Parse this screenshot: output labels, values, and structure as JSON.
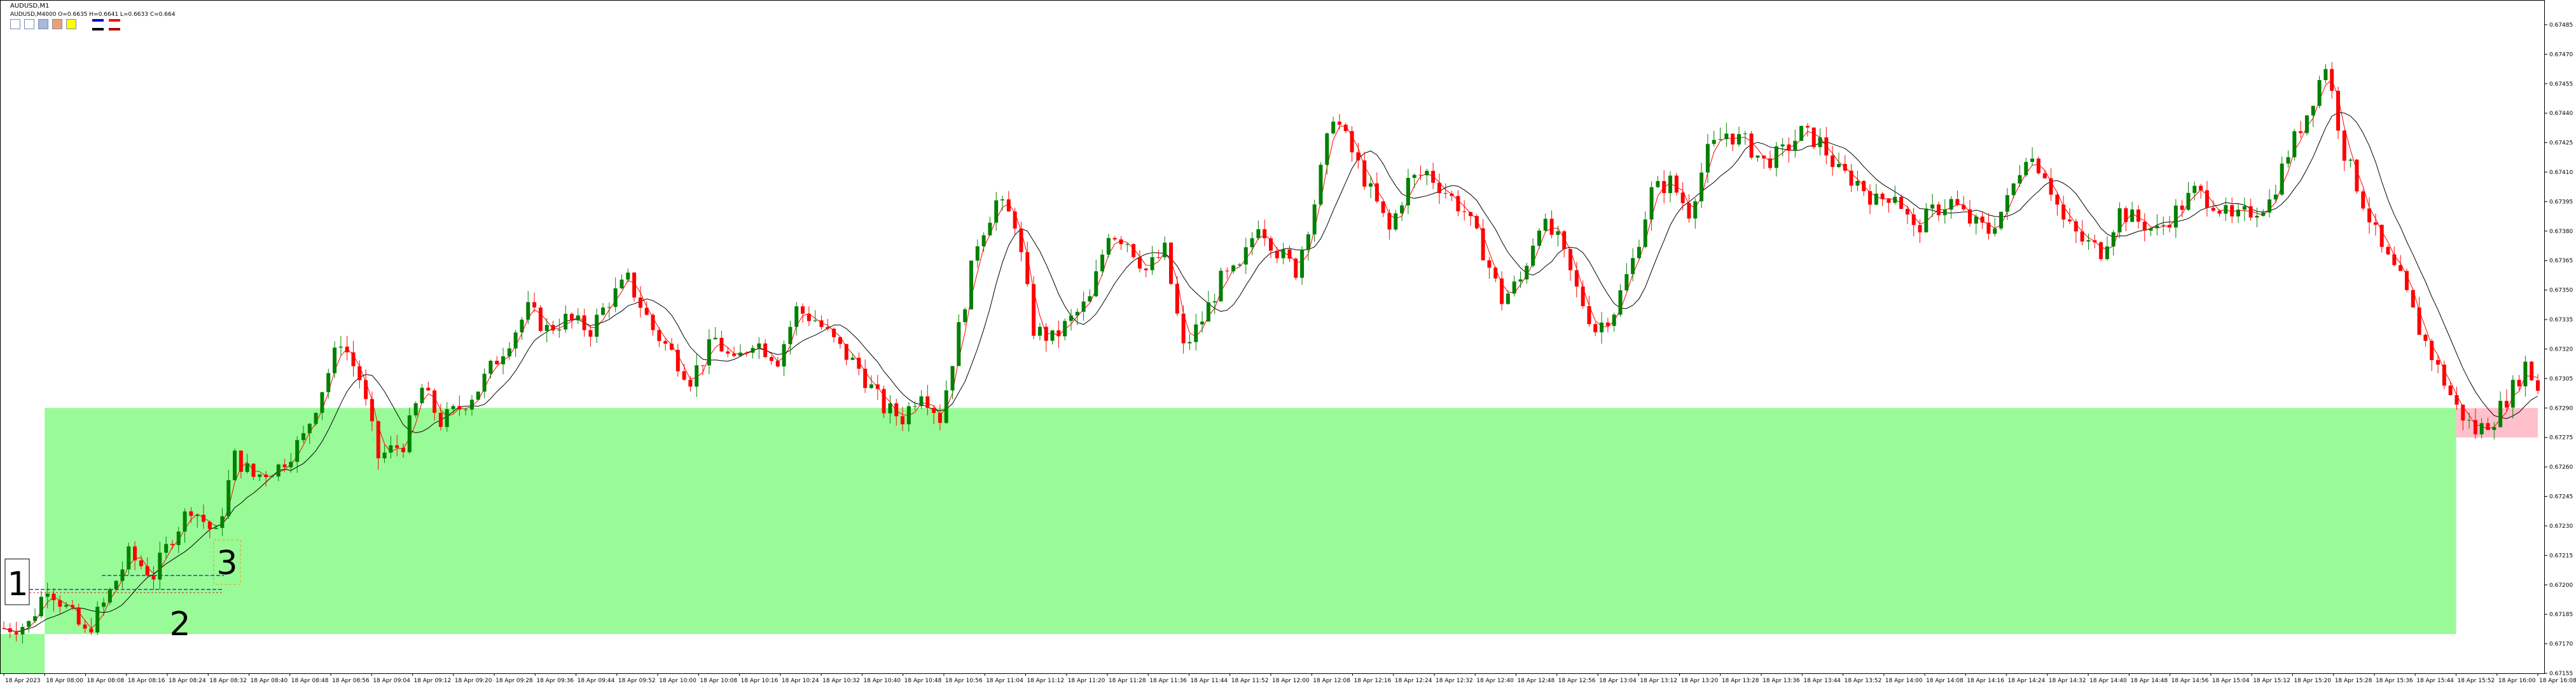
{
  "header": {
    "symbol_line": "AUDUSD,M1",
    "ohlc_line": "AUDUSD,M4000   O=0.6635   H=0.6641   L=0.6633   C=0.664",
    "legend_colors": [
      "#0000cc",
      "#ff0000",
      "#000000",
      "#b30000"
    ]
  },
  "toolbar": {
    "buttons": [
      {
        "name": "square-outline-blue-icon",
        "color": "#ffffff"
      },
      {
        "name": "square-outline-red-icon",
        "color": "#ffffff"
      },
      {
        "name": "square-fill-gray-icon",
        "color": "#a8b8d8"
      },
      {
        "name": "square-fill-orange-icon",
        "color": "#f0a070"
      },
      {
        "name": "square-fill-yellow-icon",
        "color": "#ffff00"
      }
    ]
  },
  "annotations": {
    "label_1": "1",
    "label_2": "2",
    "label_3": "3"
  },
  "colors": {
    "bull": "#008000",
    "bear": "#ff0000",
    "ma_fast": "#ff0000",
    "ma_slow": "#000000",
    "zone_green": "#98fb98",
    "zone_pink": "#ffc0cb",
    "axis": "#000000"
  },
  "chart_data": {
    "type": "candlestick",
    "title": "AUDUSD,M1",
    "ylim": [
      0.67155,
      0.67495
    ],
    "y_ticks": [
      "0.67485",
      "0.67470",
      "0.67455",
      "0.67440",
      "0.67425",
      "0.67410",
      "0.67395",
      "0.67380",
      "0.67365",
      "0.67350",
      "0.67335",
      "0.67320",
      "0.67305",
      "0.67290",
      "0.67275",
      "0.67260",
      "0.67245",
      "0.67230",
      "0.67215",
      "0.67200",
      "0.67185",
      "0.67170",
      "0.67155"
    ],
    "x_ticks": [
      "18 Apr 2023",
      "18 Apr 08:00",
      "18 Apr 08:08",
      "18 Apr 08:16",
      "18 Apr 08:24",
      "18 Apr 08:32",
      "18 Apr 08:40",
      "18 Apr 08:48",
      "18 Apr 08:56",
      "18 Apr 09:04",
      "18 Apr 09:12",
      "18 Apr 09:20",
      "18 Apr 09:28",
      "18 Apr 09:36",
      "18 Apr 09:44",
      "18 Apr 09:52",
      "18 Apr 10:00",
      "18 Apr 10:08",
      "18 Apr 10:16",
      "18 Apr 10:24",
      "18 Apr 10:32",
      "18 Apr 10:40",
      "18 Apr 10:48",
      "18 Apr 10:56",
      "18 Apr 11:04",
      "18 Apr 11:12",
      "18 Apr 11:20",
      "18 Apr 11:28",
      "18 Apr 11:36",
      "18 Apr 11:44",
      "18 Apr 11:52",
      "18 Apr 12:00",
      "18 Apr 12:08",
      "18 Apr 12:16",
      "18 Apr 12:24",
      "18 Apr 12:32",
      "18 Apr 12:40",
      "18 Apr 12:48",
      "18 Apr 12:56",
      "18 Apr 13:04",
      "18 Apr 13:12",
      "18 Apr 13:20",
      "18 Apr 13:28",
      "18 Apr 13:36",
      "18 Apr 13:44",
      "18 Apr 13:52",
      "18 Apr 14:00",
      "18 Apr 14:08",
      "18 Apr 14:16",
      "18 Apr 14:24",
      "18 Apr 14:32",
      "18 Apr 14:40",
      "18 Apr 14:48",
      "18 Apr 14:56",
      "18 Apr 15:04",
      "18 Apr 15:12",
      "18 Apr 15:20",
      "18 Apr 15:28",
      "18 Apr 15:36",
      "18 Apr 15:44",
      "18 Apr 15:52",
      "18 Apr 16:00",
      "18 Apr 16:08"
    ],
    "zones": [
      {
        "name": "demand-zone",
        "x_start": "18 Apr 08:00",
        "x_end": "18 Apr 15:52",
        "y_low": 0.67175,
        "y_high": 0.6729
      },
      {
        "name": "demand-zone-origin",
        "x_start": "18 Apr 2023",
        "x_end": "18 Apr 08:00",
        "y_low": 0.67155,
        "y_high": 0.67175
      },
      {
        "name": "pink-zone",
        "x_start": "18 Apr 15:52",
        "x_end": "18 Apr 16:08",
        "y_low": 0.67275,
        "y_high": 0.6729
      }
    ],
    "path_points": [
      [
        0,
        0.67178
      ],
      [
        4,
        0.6718
      ],
      [
        7,
        0.672
      ],
      [
        10,
        0.67188
      ],
      [
        13,
        0.67175
      ],
      [
        16,
        0.6719
      ],
      [
        20,
        0.67215
      ],
      [
        24,
        0.67205
      ],
      [
        27,
        0.67225
      ],
      [
        30,
        0.6724
      ],
      [
        34,
        0.67225
      ],
      [
        37,
        0.67265
      ],
      [
        40,
        0.67255
      ],
      [
        44,
        0.6726
      ],
      [
        48,
        0.67275
      ],
      [
        51,
        0.673
      ],
      [
        54,
        0.67325
      ],
      [
        57,
        0.67305
      ],
      [
        60,
        0.67265
      ],
      [
        64,
        0.67272
      ],
      [
        67,
        0.673
      ],
      [
        70,
        0.67283
      ],
      [
        73,
        0.6729
      ],
      [
        76,
        0.673
      ],
      [
        80,
        0.6732
      ],
      [
        84,
        0.6734
      ],
      [
        87,
        0.6733
      ],
      [
        90,
        0.67335
      ],
      [
        94,
        0.6733
      ],
      [
        97,
        0.67345
      ],
      [
        100,
        0.67355
      ],
      [
        104,
        0.6733
      ],
      [
        107,
        0.67318
      ],
      [
        110,
        0.67305
      ],
      [
        114,
        0.67325
      ],
      [
        117,
        0.67312
      ],
      [
        120,
        0.67325
      ],
      [
        124,
        0.67315
      ],
      [
        127,
        0.6734
      ],
      [
        130,
        0.67335
      ],
      [
        134,
        0.6732
      ],
      [
        137,
        0.6731
      ],
      [
        141,
        0.6729
      ],
      [
        144,
        0.67285
      ],
      [
        147,
        0.673
      ],
      [
        150,
        0.67285
      ],
      [
        153,
        0.6733
      ],
      [
        156,
        0.67375
      ],
      [
        159,
        0.67395
      ],
      [
        162,
        0.67385
      ],
      [
        165,
        0.6733
      ],
      [
        168,
        0.67325
      ],
      [
        171,
        0.67335
      ],
      [
        174,
        0.67345
      ],
      [
        177,
        0.6738
      ],
      [
        180,
        0.67375
      ],
      [
        183,
        0.6736
      ],
      [
        186,
        0.6737
      ],
      [
        189,
        0.6732
      ],
      [
        192,
        0.67335
      ],
      [
        195,
        0.67355
      ],
      [
        198,
        0.6736
      ],
      [
        201,
        0.67385
      ],
      [
        204,
        0.6737
      ],
      [
        207,
        0.6736
      ],
      [
        210,
        0.67395
      ],
      [
        213,
        0.6744
      ],
      [
        216,
        0.6742
      ],
      [
        219,
        0.674
      ],
      [
        222,
        0.6738
      ],
      [
        225,
        0.67405
      ],
      [
        228,
        0.6741
      ],
      [
        231,
        0.674
      ],
      [
        234,
        0.6739
      ],
      [
        237,
        0.6737
      ],
      [
        240,
        0.67345
      ],
      [
        243,
        0.67355
      ],
      [
        246,
        0.67385
      ],
      [
        249,
        0.67375
      ],
      [
        252,
        0.6735
      ],
      [
        255,
        0.6733
      ],
      [
        258,
        0.6734
      ],
      [
        261,
        0.67365
      ],
      [
        264,
        0.674
      ],
      [
        267,
        0.67405
      ],
      [
        270,
        0.6739
      ],
      [
        273,
        0.6742
      ],
      [
        276,
        0.6743
      ],
      [
        279,
        0.67425
      ],
      [
        282,
        0.67415
      ],
      [
        285,
        0.6742
      ],
      [
        288,
        0.6743
      ],
      [
        291,
        0.67425
      ],
      [
        294,
        0.6741
      ],
      [
        297,
        0.67405
      ],
      [
        300,
        0.67395
      ],
      [
        303,
        0.674
      ],
      [
        306,
        0.6738
      ],
      [
        309,
        0.6739
      ],
      [
        312,
        0.67395
      ],
      [
        315,
        0.67385
      ],
      [
        318,
        0.6738
      ],
      [
        321,
        0.67395
      ],
      [
        324,
        0.6742
      ],
      [
        327,
        0.6741
      ],
      [
        330,
        0.67385
      ],
      [
        333,
        0.67375
      ],
      [
        336,
        0.6737
      ],
      [
        339,
        0.6739
      ],
      [
        342,
        0.67385
      ],
      [
        345,
        0.6738
      ],
      [
        348,
        0.6739
      ],
      [
        351,
        0.674
      ],
      [
        354,
        0.67395
      ],
      [
        357,
        0.67385
      ],
      [
        360,
        0.6739
      ],
      [
        363,
        0.67395
      ],
      [
        366,
        0.6742
      ],
      [
        369,
        0.6744
      ],
      [
        372,
        0.67465
      ],
      [
        375,
        0.6742
      ],
      [
        378,
        0.67395
      ],
      [
        381,
        0.6737
      ],
      [
        384,
        0.67355
      ],
      [
        387,
        0.6733
      ],
      [
        390,
        0.6731
      ],
      [
        393,
        0.6729
      ],
      [
        396,
        0.67278
      ],
      [
        399,
        0.67285
      ],
      [
        402,
        0.673
      ],
      [
        404,
        0.67312
      ],
      [
        406,
        0.673
      ]
    ]
  }
}
